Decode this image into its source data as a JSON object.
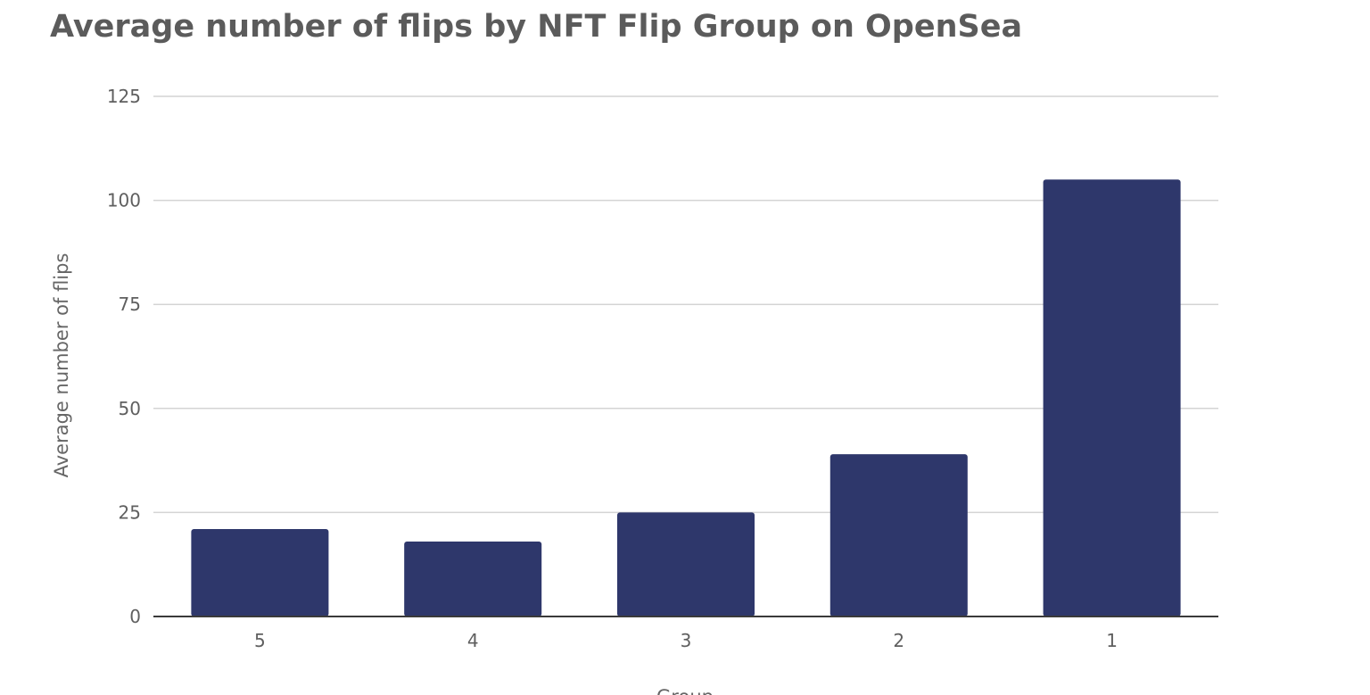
{
  "chart_data": {
    "type": "bar",
    "title": "Average number of flips by NFT Flip Group on OpenSea",
    "xlabel": "Group",
    "ylabel": "Average number of flips",
    "categories": [
      "5",
      "4",
      "3",
      "2",
      "1"
    ],
    "values": [
      21,
      18,
      25,
      39,
      105
    ],
    "ylim": [
      0,
      125
    ],
    "yticks": [
      0,
      25,
      50,
      75,
      100,
      125
    ],
    "grid": true,
    "legend": "none",
    "colors": {
      "bar": "#2e376b",
      "grid": "#d4d4d4",
      "axis": "#3a3a3a"
    }
  }
}
